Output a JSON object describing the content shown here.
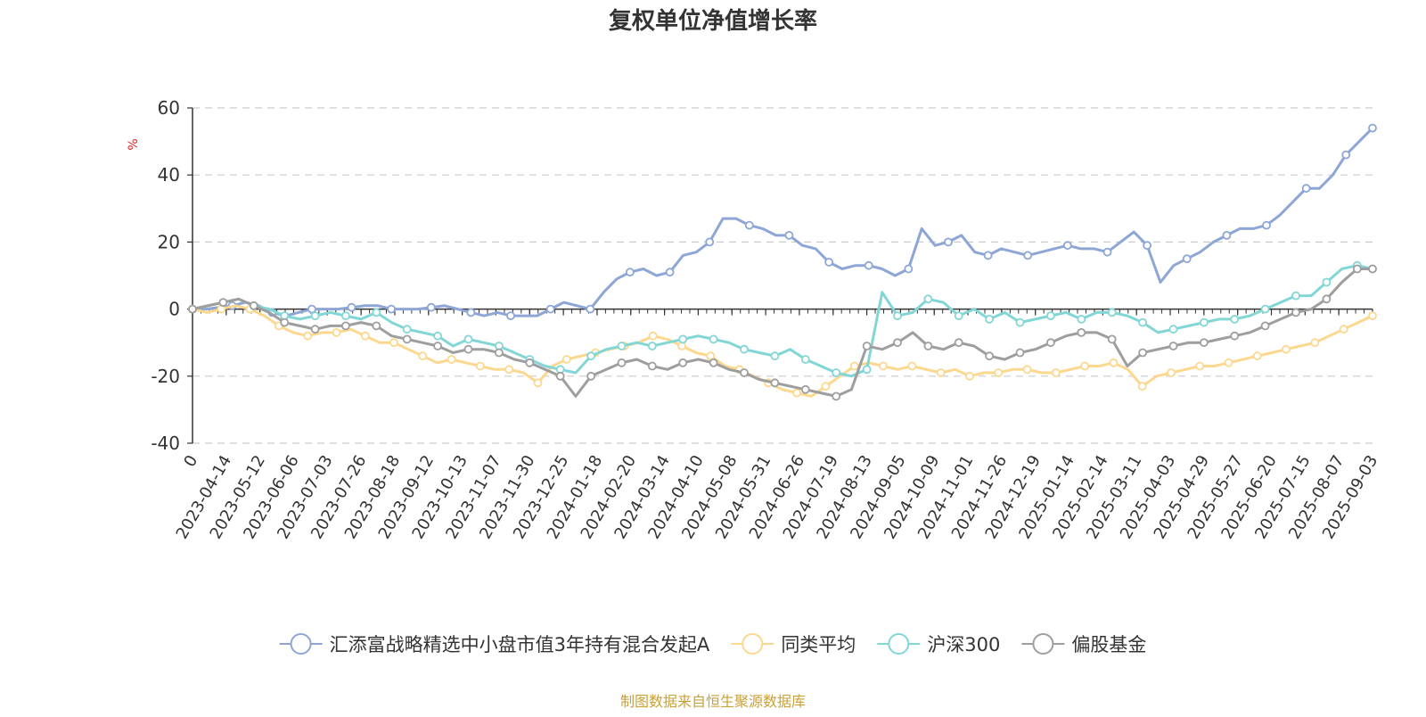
{
  "chart_data": {
    "type": "line",
    "title": "复权单位净值增长率",
    "ylabel": "%",
    "ylim": [
      -40,
      60
    ],
    "yticks": [
      -40,
      -20,
      0,
      20,
      40,
      60
    ],
    "xticks": [
      "0",
      "2023-04-14",
      "2023-05-12",
      "2023-06-06",
      "2023-07-03",
      "2023-07-26",
      "2023-08-18",
      "2023-09-12",
      "2023-10-13",
      "2023-11-07",
      "2023-11-30",
      "2023-12-25",
      "2024-01-18",
      "2024-02-20",
      "2024-03-14",
      "2024-04-10",
      "2024-05-08",
      "2024-05-31",
      "2024-06-26",
      "2024-07-19",
      "2024-08-13",
      "2024-09-05",
      "2024-10-09",
      "2024-11-01",
      "2024-11-26",
      "2024-12-19",
      "2025-01-14",
      "2025-02-14",
      "2025-03-11",
      "2025-04-03",
      "2025-04-29",
      "2025-05-27",
      "2025-06-20",
      "2025-07-15",
      "2025-08-07",
      "2025-09-03"
    ],
    "grid": "horizontal-dashed",
    "legend_position": "bottom",
    "series": [
      {
        "name": "汇添富战略精选中小盘市值3年持有混合发起A",
        "color": "#8da6d6",
        "values": [
          0,
          0,
          0.5,
          1,
          2,
          1,
          -1,
          -2,
          -1,
          0,
          0,
          0,
          0.5,
          1,
          1,
          0,
          0,
          0,
          0.5,
          1,
          0,
          -1,
          -2,
          -1,
          -2,
          -2,
          -2,
          0,
          2,
          1,
          0,
          5,
          9,
          11,
          12,
          10,
          11,
          16,
          17,
          20,
          27,
          27,
          25,
          24,
          22,
          22,
          19,
          18,
          14,
          12,
          13,
          13,
          12,
          10,
          12,
          24,
          19,
          20,
          22,
          17,
          16,
          18,
          17,
          16,
          17,
          18,
          19,
          18,
          18,
          17,
          20,
          23,
          19,
          8,
          13,
          15,
          17,
          20,
          22,
          24,
          24,
          25,
          28,
          32,
          36,
          36,
          40,
          46,
          50,
          54
        ]
      },
      {
        "name": "同类平均",
        "color": "#fcd88f",
        "values": [
          0,
          -1,
          0,
          1,
          0,
          -2,
          -5,
          -7,
          -8,
          -7,
          -7,
          -6,
          -8,
          -10,
          -10,
          -12,
          -14,
          -16,
          -15,
          -16,
          -17,
          -18,
          -18,
          -19,
          -22,
          -17,
          -15,
          -14,
          -13,
          -12,
          -11,
          -10,
          -8,
          -9,
          -11,
          -13,
          -14,
          -17,
          -18,
          -20,
          -22,
          -24,
          -25,
          -26,
          -23,
          -20,
          -17,
          -16,
          -17,
          -18,
          -17,
          -18,
          -19,
          -18,
          -20,
          -19,
          -19,
          -18,
          -18,
          -19,
          -19,
          -18,
          -17,
          -17,
          -16,
          -18,
          -23,
          -20,
          -19,
          -18,
          -17,
          -17,
          -16,
          -15,
          -14,
          -13,
          -12,
          -11,
          -10,
          -8,
          -6,
          -4,
          -2
        ]
      },
      {
        "name": "沪深300",
        "color": "#83d6d6",
        "values": [
          0,
          1,
          2,
          3,
          1,
          0,
          -2,
          -3,
          -2,
          -1,
          -2,
          -3,
          -1,
          -4,
          -6,
          -7,
          -8,
          -11,
          -9,
          -10,
          -11,
          -13,
          -15,
          -17,
          -18,
          -19,
          -14,
          -12,
          -11,
          -10,
          -11,
          -10,
          -9,
          -8,
          -9,
          -10,
          -12,
          -13,
          -14,
          -12,
          -15,
          -17,
          -19,
          -20,
          -18,
          5,
          -2,
          -1,
          3,
          2,
          -2,
          0,
          -3,
          -1,
          -4,
          -3,
          -2,
          -1,
          -3,
          -1,
          -1,
          -2,
          -4,
          -7,
          -6,
          -5,
          -4,
          -3,
          -3,
          -2,
          0,
          2,
          4,
          4,
          8,
          12,
          13,
          12
        ]
      },
      {
        "name": "偏股基金",
        "color": "#9e9e9e",
        "values": [
          0,
          1,
          2,
          3,
          1,
          -1,
          -4,
          -5,
          -6,
          -5,
          -5,
          -4,
          -5,
          -8,
          -9,
          -10,
          -11,
          -13,
          -12,
          -12,
          -13,
          -15,
          -16,
          -18,
          -20,
          -26,
          -20,
          -18,
          -16,
          -15,
          -17,
          -18,
          -16,
          -15,
          -16,
          -18,
          -19,
          -21,
          -22,
          -23,
          -24,
          -25,
          -26,
          -24,
          -11,
          -12,
          -10,
          -7,
          -11,
          -12,
          -10,
          -11,
          -14,
          -15,
          -13,
          -12,
          -10,
          -8,
          -7,
          -7,
          -9,
          -17,
          -13,
          -12,
          -11,
          -10,
          -10,
          -9,
          -8,
          -7,
          -5,
          -3,
          -1,
          0,
          3,
          8,
          12,
          12
        ]
      }
    ]
  },
  "source_note": "制图数据来自恒生聚源数据库"
}
